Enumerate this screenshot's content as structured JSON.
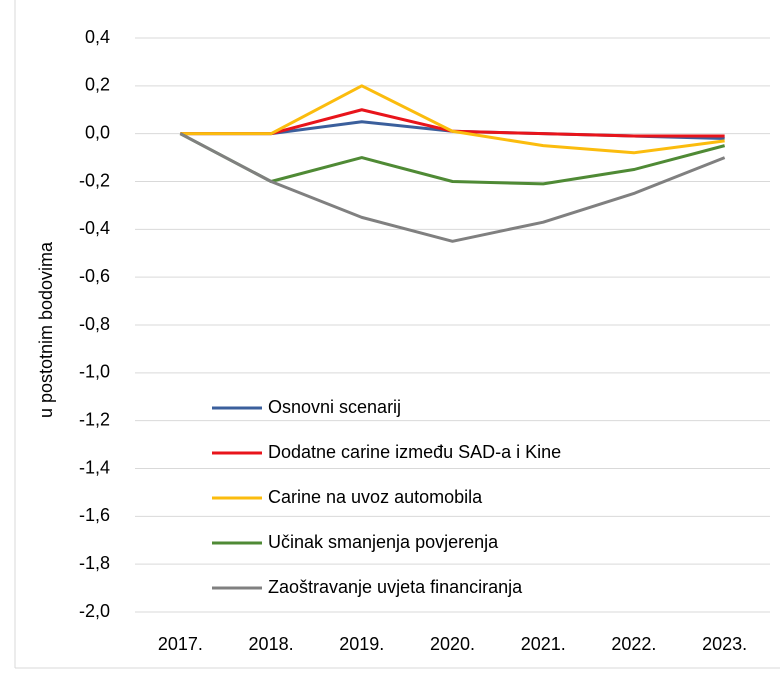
{
  "chart_data": {
    "type": "line",
    "ylabel": "u postotnim bodovima",
    "categories": [
      "2017.",
      "2018.",
      "2019.",
      "2020.",
      "2021.",
      "2022.",
      "2023."
    ],
    "series": [
      {
        "name": "Osnovni scenarij",
        "color": "#3b5f9c",
        "values": [
          0,
          0,
          0.05,
          0.01,
          0,
          -0.01,
          -0.02
        ]
      },
      {
        "name": "Dodatne carine između SAD-a i Kine",
        "color": "#e8141b",
        "values": [
          0,
          0,
          0.1,
          0.01,
          0,
          -0.01,
          -0.01
        ]
      },
      {
        "name": "Carine na uvoz automobila",
        "color": "#fbbc0e",
        "values": [
          0,
          0,
          0.2,
          0.01,
          -0.05,
          -0.08,
          -0.03
        ]
      },
      {
        "name": "Učinak smanjenja povjerenja",
        "color": "#4f8a35",
        "values": [
          0,
          -0.2,
          -0.1,
          -0.2,
          -0.21,
          -0.15,
          -0.05
        ]
      },
      {
        "name": "Zaoštravanje uvjeta financiranja",
        "color": "#808080",
        "values": [
          0,
          -0.2,
          -0.35,
          -0.45,
          -0.37,
          -0.25,
          -0.1
        ]
      }
    ],
    "ylim": [
      -2.0,
      0.4
    ],
    "yticks": [
      {
        "value": 0.4,
        "label": "0,4"
      },
      {
        "value": 0.2,
        "label": "0,2"
      },
      {
        "value": 0,
        "label": "0,0"
      },
      {
        "value": -0.2,
        "label": "-0,2"
      },
      {
        "value": -0.4,
        "label": "-0,4"
      },
      {
        "value": -0.6,
        "label": "-0,6"
      },
      {
        "value": -0.8,
        "label": "-0,8"
      },
      {
        "value": -1.0,
        "label": "-1,0"
      },
      {
        "value": -1.2,
        "label": "-1,2"
      },
      {
        "value": -1.4,
        "label": "-1,4"
      },
      {
        "value": -1.6,
        "label": "-1,6"
      },
      {
        "value": -1.8,
        "label": "-1,8"
      },
      {
        "value": -2.0,
        "label": "-2,0"
      }
    ],
    "grid": true,
    "legend": "lower left"
  }
}
